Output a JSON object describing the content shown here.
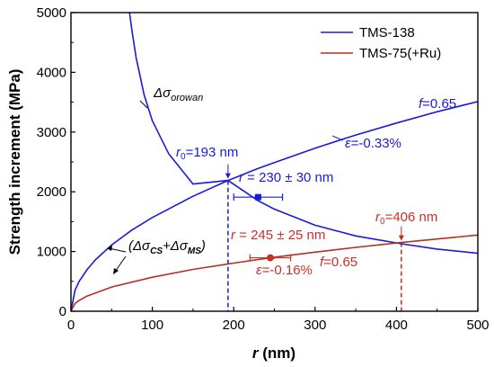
{
  "chart_data": {
    "type": "line",
    "xlabel": {
      "var": "r",
      "unit": " (nm)"
    },
    "ylabel": "Strength increment (MPa)",
    "xlim": [
      0,
      500
    ],
    "ylim": [
      0,
      5000
    ],
    "x_ticks": [
      0,
      100,
      200,
      300,
      400,
      500
    ],
    "y_ticks": [
      0,
      1000,
      2000,
      3000,
      4000,
      5000
    ],
    "grid": false,
    "legend_position": "top-right",
    "series": [
      {
        "name": "TMS-138",
        "color": "#1a1adb",
        "x": [
          0,
          5,
          10,
          20,
          30,
          50,
          75,
          100,
          150,
          193,
          230,
          250,
          300,
          350,
          400,
          450,
          500
        ],
        "y": [
          0,
          350,
          500,
          700,
          860,
          1110,
          1360,
          1570,
          1925,
          2190,
          2390,
          2490,
          2730,
          2950,
          3150,
          3340,
          3510
        ]
      },
      {
        "name": "TMS-138",
        "color": "#1a1adb",
        "x": [
          72,
          75,
          80,
          90,
          100,
          120,
          150,
          193,
          230,
          250,
          300,
          350,
          406,
          450,
          500
        ],
        "y": [
          5000,
          4700,
          4250,
          3620,
          3190,
          2640,
          2130,
          2190,
          1850,
          1710,
          1440,
          1260,
          1130,
          1040,
          970
        ]
      },
      {
        "name": "TMS-75(+Ru)",
        "color": "#b5301f",
        "x": [
          0,
          5,
          10,
          20,
          50,
          100,
          150,
          200,
          245,
          300,
          350,
          406,
          450,
          500
        ],
        "y": [
          0,
          130,
          180,
          255,
          405,
          570,
          700,
          805,
          895,
          990,
          1070,
          1150,
          1210,
          1275
        ]
      }
    ],
    "legend": [
      {
        "label": "TMS-138",
        "color": "#1a1adb"
      },
      {
        "label": "TMS-75(+Ru)",
        "color": "#b5301f"
      }
    ],
    "markers": [
      {
        "series": "TMS-138",
        "x": 230,
        "y": 1910,
        "xerr": 30,
        "color": "#1a1adb",
        "shape": "square"
      },
      {
        "series": "TMS-75(+Ru)",
        "x": 245,
        "y": 895,
        "xerr": 25,
        "color": "#c8302a",
        "shape": "circle"
      }
    ],
    "crossovers": [
      {
        "x": 193,
        "y": 2190,
        "color": "#1a1adb"
      },
      {
        "x": 406,
        "y": 1150,
        "color": "#b5301f"
      }
    ],
    "annotations": {
      "orowan": {
        "main": "Δσ",
        "sub": "orowan"
      },
      "cs_ms": {
        "lead": "(Δσ",
        "sub1": "CS",
        "mid": "+Δσ",
        "sub2": "MS",
        "tail": ")"
      },
      "r0_blue": {
        "var": "r",
        "sub": "0",
        "rest": "=193 nm"
      },
      "r0_red": {
        "var": "r",
        "sub": "0",
        "rest": "=406 nm"
      },
      "f_blue": {
        "var": "f",
        "rest": "=0.65"
      },
      "f_red": {
        "var": "f",
        "rest": "=0.65"
      },
      "eps_blue": {
        "var": "ε",
        "rest": "=-0.33%"
      },
      "eps_red": {
        "var": "ε",
        "rest": "=-0.16%"
      },
      "r_blue": {
        "var": "r",
        "rest": " = 230 ± 30 nm"
      },
      "r_red": {
        "var": "r",
        "rest": " = 245 ± 25 nm"
      }
    }
  }
}
